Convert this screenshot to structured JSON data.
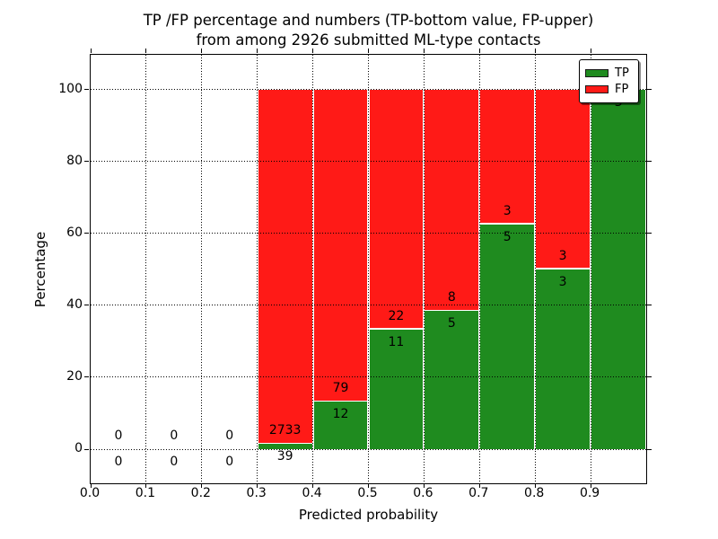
{
  "colors": {
    "tp": "#1f8b1f",
    "fp": "#ff1a17",
    "grid": "#000000",
    "background": "#ffffff",
    "text": "#000000"
  },
  "legend": {
    "items": [
      {
        "label": "TP",
        "color": "#1f8b1f"
      },
      {
        "label": "FP",
        "color": "#ff1a17"
      }
    ],
    "position": "upper-right"
  },
  "chart_data": {
    "type": "bar",
    "stacked": true,
    "title_line1": "TP /FP percentage and numbers (TP-bottom value, FP-upper)",
    "title_line2": "from among 2926 submitted ML-type contacts",
    "total_contacts": 2926,
    "xlabel": "Predicted probability",
    "ylabel": "Percentage",
    "xlim": [
      0.0,
      1.0
    ],
    "ylim": [
      -10,
      110
    ],
    "grid": "dotted",
    "legend_position": "upper-right",
    "bin_edges": [
      0.0,
      0.1,
      0.2,
      0.3,
      0.4,
      0.5,
      0.6,
      0.7,
      0.8,
      0.9,
      1.0
    ],
    "xticks": [
      "0.0",
      "0.1",
      "0.2",
      "0.3",
      "0.4",
      "0.5",
      "0.6",
      "0.7",
      "0.8",
      "0.9"
    ],
    "xtick_values": [
      0.0,
      0.1,
      0.2,
      0.3,
      0.4,
      0.5,
      0.6,
      0.7,
      0.8,
      0.9
    ],
    "yticks": [
      "0",
      "20",
      "40",
      "60",
      "80",
      "100"
    ],
    "ytick_values": [
      0,
      20,
      40,
      60,
      80,
      100
    ],
    "series": [
      {
        "name": "TP",
        "color": "#1f8b1f",
        "counts": [
          0,
          0,
          0,
          39,
          12,
          11,
          5,
          5,
          3,
          3
        ],
        "pct": [
          0,
          0,
          0,
          1.41,
          13.19,
          33.33,
          38.46,
          62.5,
          50.0,
          100.0
        ]
      },
      {
        "name": "FP",
        "color": "#ff1a17",
        "counts": [
          0,
          0,
          0,
          2733,
          79,
          22,
          8,
          3,
          3,
          0
        ],
        "pct": [
          0,
          0,
          0,
          98.59,
          86.81,
          66.67,
          61.54,
          37.5,
          50.0,
          0.0
        ]
      }
    ]
  }
}
